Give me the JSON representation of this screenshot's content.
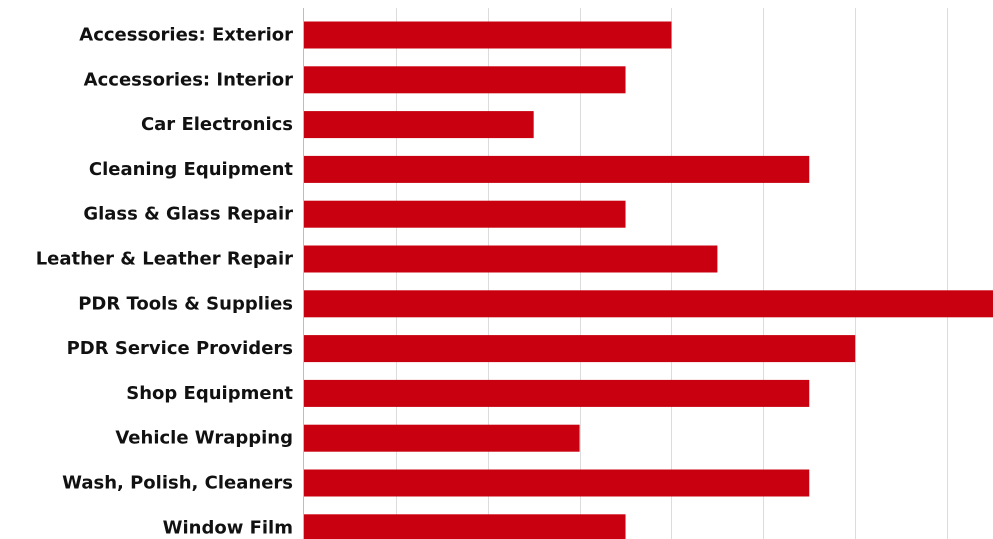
{
  "chart_data": {
    "type": "bar",
    "orientation": "horizontal",
    "categories": [
      "Accessories: Exterior",
      "Accessories: Interior",
      "Car Electronics",
      "Cleaning Equipment",
      "Glass & Glass Repair",
      "Leather & Leather Repair",
      "PDR Tools & Supplies",
      "PDR Service Providers",
      "Shop Equipment",
      "Vehicle Wrapping",
      "Wash, Polish, Cleaners",
      "Window Film"
    ],
    "values": [
      8,
      7,
      5,
      11,
      7,
      9,
      15,
      12,
      11,
      6,
      11,
      7
    ],
    "xlim": [
      0,
      15
    ],
    "grid": true,
    "bar_color": "#c8000f",
    "gridline_step": 2
  }
}
